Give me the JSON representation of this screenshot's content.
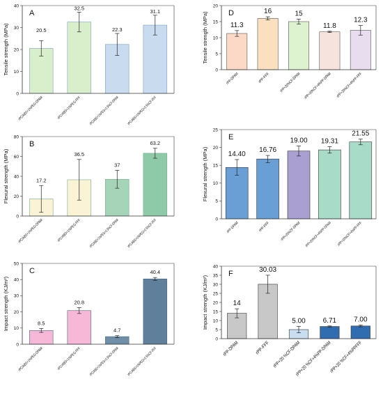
{
  "chart_data": [
    {
      "panel": "A",
      "type": "bar",
      "ylabel": "Tensile strength (MPa)",
      "ylim": [
        0,
        40
      ],
      "yticks": [
        0,
        10,
        20,
        30,
        40
      ],
      "categories": [
        "rPC/ABS+1%PEG-DPAM",
        "rPC/ABS+1%PEG-FFF",
        "rPC/ABS+1%PEG+2.5%CF-DPAM",
        "rPC/ABS+1%PEG+2.5%CF-FFF"
      ],
      "values": [
        20.5,
        32.5,
        22.3,
        31.1
      ],
      "errors": [
        3.5,
        4.5,
        5.0,
        4.5
      ],
      "labels": [
        "20.5",
        "32.5",
        "22.3",
        "31.1"
      ],
      "colors": [
        "#d9eecb",
        "#d9eecb",
        "#c9dcef",
        "#c9dcef"
      ],
      "edge": "#7a9ec4"
    },
    {
      "panel": "B",
      "type": "bar",
      "ylabel": "Flexural strength (MPa)",
      "ylim": [
        0,
        80
      ],
      "yticks": [
        0,
        20,
        40,
        60,
        80
      ],
      "categories": [
        "rPC/ABS+1%PEG-DPAM",
        "rPC/ABS+1%PEG-FFF",
        "rPC/ABS+1%PEG+2.5%CF-DPAM",
        "rPC/ABS+1%PEG+2.5%CF-FFF"
      ],
      "values": [
        17.2,
        36.5,
        37,
        63.2
      ],
      "errors": [
        13.5,
        20.5,
        9.0,
        5.0
      ],
      "labels": [
        "17.2",
        "36.5",
        "37",
        "63.2"
      ],
      "colors": [
        "#fbf3d6",
        "#fbf3d6",
        "#a6d4b8",
        "#8fcaa8"
      ],
      "edge": "#6fae8c"
    },
    {
      "panel": "C",
      "type": "bar",
      "ylabel": "Impact strength (KJ/m²)",
      "ylim": [
        0,
        50
      ],
      "yticks": [
        0,
        10,
        20,
        30,
        40,
        50
      ],
      "categories": [
        "rPC/ABS+1%PEG-DPAM",
        "rPC/ABS+1%PEG-FFF",
        "rPC/ABS+1%PEG+2.5%CF-DPAM",
        "rPC/ABS+1%PEG+2.5%CF-FFF"
      ],
      "values": [
        8.5,
        20.8,
        4.7,
        40.4
      ],
      "errors": [
        1.2,
        1.8,
        0.6,
        0.9
      ],
      "labels": [
        "8.5",
        "20.8",
        "4.7",
        "40.4"
      ],
      "colors": [
        "#f7b8d8",
        "#f7b8d8",
        "#6f8ea8",
        "#5f7f9b"
      ],
      "edge": "#4a6680"
    },
    {
      "panel": "D",
      "type": "bar",
      "ylabel": "Tensile strength (MPa)",
      "ylim": [
        0,
        20
      ],
      "yticks": [
        0,
        5,
        10,
        15,
        20
      ],
      "categories": [
        "rPP-DPAM",
        "rPP-FFF",
        "rPP+20%CF-DPAM",
        "rPP+20%CF+4%PP-DPAM",
        "rPP+20%CF+4%PP-FFF"
      ],
      "values": [
        11.3,
        16,
        15,
        11.8,
        12.3
      ],
      "errors": [
        0.9,
        0.5,
        0.8,
        0.2,
        1.5
      ],
      "labels": [
        "11.3",
        "16",
        "15",
        "11.8",
        "12.3"
      ],
      "colors": [
        "#fbd9c6",
        "#fbe0c0",
        "#ddf3d0",
        "#f6e3de",
        "#e8dcef"
      ],
      "edge": "#555555"
    },
    {
      "panel": "E",
      "type": "bar",
      "ylabel": "Flexural strength (MPa)",
      "ylim": [
        0,
        25
      ],
      "yticks": [
        0,
        5,
        10,
        15,
        20,
        25
      ],
      "categories": [
        "rPP-DPAM",
        "rPP-FFF",
        "rPP+20%CF-DPAM",
        "rPP+20%CF+4%PP-DPAM",
        "rPP+20%CF+4%PP-FFF"
      ],
      "values": [
        14.4,
        16.76,
        19.0,
        19.31,
        21.55
      ],
      "errors": [
        2.2,
        1.0,
        1.4,
        0.9,
        0.8
      ],
      "labels": [
        "14.40",
        "16.76",
        "19.00",
        "19.31",
        "21.55"
      ],
      "colors": [
        "#6a9fd6",
        "#6a9fd6",
        "#a99fd0",
        "#a9dcc8",
        "#a9dcc8"
      ],
      "edge": "#333333"
    },
    {
      "panel": "F",
      "type": "bar",
      "ylabel": "Impact strength (KJ/m²)",
      "ylim": [
        0,
        40
      ],
      "yticks": [
        0,
        5,
        10,
        15,
        20,
        25,
        30,
        35,
        40
      ],
      "categories": [
        "rPP-DPAM",
        "rPP-FFF",
        "rPP+20 %CF-DPAM",
        "rPP+20 %CF+4%PP-DPAM",
        "rPP+20 %CF+4%PPFFF"
      ],
      "values": [
        14,
        30.03,
        5.0,
        6.71,
        7.0
      ],
      "errors": [
        2.5,
        5.0,
        1.8,
        0.3,
        0.5
      ],
      "labels": [
        "14",
        "30.03",
        "5.00",
        "6.71",
        "7.00"
      ],
      "colors": [
        "#c8c8c8",
        "#c8c8c8",
        "#c9ddf0",
        "#2f6db0",
        "#2f6db0"
      ],
      "edge": "#333333"
    }
  ]
}
